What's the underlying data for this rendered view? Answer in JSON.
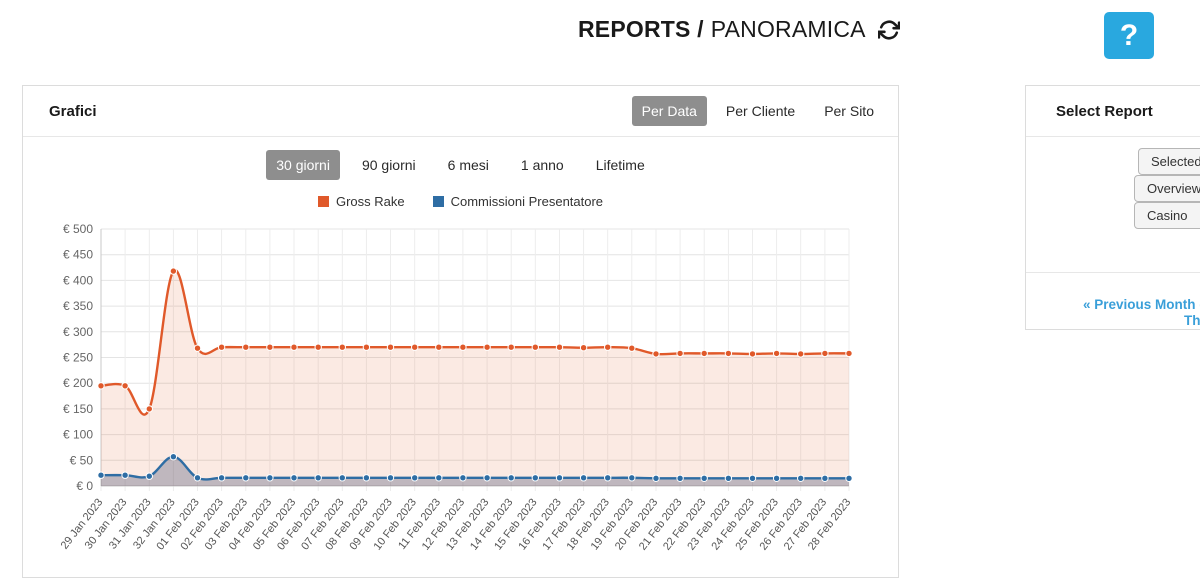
{
  "header": {
    "title_bold": "REPORTS /",
    "title_regular": "PANORAMICA",
    "help_label": "?"
  },
  "charts_card": {
    "title": "Grafici",
    "view_tabs": [
      {
        "label": "Per Data",
        "selected": true
      },
      {
        "label": "Per Cliente",
        "selected": false
      },
      {
        "label": "Per Sito",
        "selected": false
      }
    ],
    "range_tabs": [
      {
        "label": "30 giorni",
        "selected": true
      },
      {
        "label": "90 giorni",
        "selected": false
      },
      {
        "label": "6 mesi",
        "selected": false
      },
      {
        "label": "1 anno",
        "selected": false
      },
      {
        "label": "Lifetime",
        "selected": false
      }
    ]
  },
  "chart_data": {
    "type": "area",
    "title": "",
    "x": [
      "29 Jan 2023",
      "30 Jan 2023",
      "31 Jan 2023",
      "32 Jan 2023",
      "01 Feb 2023",
      "02 Feb 2023",
      "03 Feb 2023",
      "04 Feb 2023",
      "05 Feb 2023",
      "06 Feb 2023",
      "07 Feb 2023",
      "08 Feb 2023",
      "09 Feb 2023",
      "10 Feb 2023",
      "11 Feb 2023",
      "12 Feb 2023",
      "13 Feb 2023",
      "14 Feb 2023",
      "15 Feb 2023",
      "16 Feb 2023",
      "17 Feb 2023",
      "18 Feb 2023",
      "19 Feb 2023",
      "20 Feb 2023",
      "21 Feb 2023",
      "22 Feb 2023",
      "23 Feb 2023",
      "24 Feb 2023",
      "25 Feb 2023",
      "26 Feb 2023",
      "27 Feb 2023",
      "28 Feb 2023"
    ],
    "series": [
      {
        "name": "Gross Rake",
        "color": "#e0592a",
        "fill": "rgba(224,89,42,0.13)",
        "values": [
          195,
          195,
          150,
          418,
          268,
          270,
          270,
          270,
          270,
          270,
          270,
          270,
          270,
          270,
          270,
          270,
          270,
          270,
          270,
          270,
          269,
          270,
          268,
          257,
          258,
          258,
          258,
          257,
          258,
          257,
          258,
          258
        ]
      },
      {
        "name": "Commissioni Presentatore",
        "color": "#2e6da4",
        "fill": "rgba(80,90,120,0.35)",
        "values": [
          21,
          21,
          19,
          57,
          16,
          16,
          16,
          16,
          16,
          16,
          16,
          16,
          16,
          16,
          16,
          16,
          16,
          16,
          16,
          16,
          16,
          16,
          16,
          15,
          15,
          15,
          15,
          15,
          15,
          15,
          15,
          15
        ]
      }
    ],
    "y_prefix": "€ ",
    "ylim": [
      0,
      500
    ],
    "ytick_step": 50,
    "grid": true,
    "legend_position": "top"
  },
  "report_card": {
    "title": "Select Report",
    "buttons": [
      {
        "label": "Selected: F"
      },
      {
        "label": "Overview ("
      },
      {
        "label": "Casino"
      }
    ],
    "links": [
      {
        "label": "« Previous Month (Jan"
      },
      {
        "label": "Th"
      }
    ]
  },
  "colors": {
    "accent_blue": "#29a8df",
    "link_blue": "#3a9fd9",
    "selected_gray": "#8e8e8e",
    "gross_rake_orange": "#e0592a",
    "commissioni_blue": "#2e6da4"
  }
}
